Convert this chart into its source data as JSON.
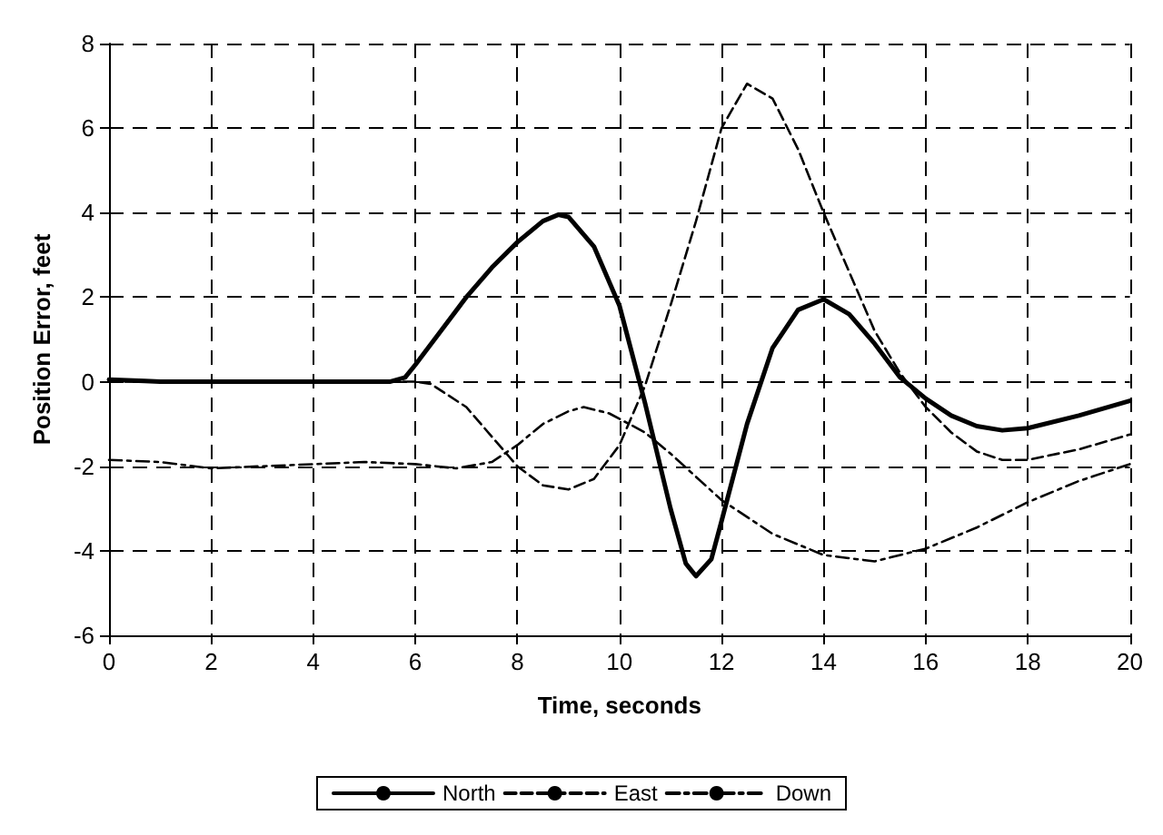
{
  "chart_data": {
    "type": "line",
    "xlabel": "Time, seconds",
    "ylabel": "Position Error, feet",
    "xlim": [
      0,
      20
    ],
    "xticks": [
      0,
      2,
      4,
      6,
      8,
      10,
      12,
      14,
      16,
      18,
      20
    ],
    "ylim": [
      -6,
      8
    ],
    "yticks": [
      -6,
      -4,
      -2,
      0,
      2,
      4,
      6,
      8
    ],
    "grid": true,
    "legend": "bottom",
    "marker": "none",
    "series": [
      {
        "name": "North",
        "color": "#000000",
        "line_style": "solid",
        "x": [
          0,
          0.7,
          1,
          5.5,
          5.8,
          6,
          6.5,
          7,
          7.5,
          8,
          8.5,
          8.8,
          9,
          9.5,
          10,
          10.5,
          11,
          11.3,
          11.5,
          11.8,
          12,
          12.5,
          13,
          13.5,
          14,
          14.5,
          15,
          15.5,
          16,
          16.5,
          17,
          17.5,
          18,
          19,
          20
        ],
        "values": [
          0.05,
          0.02,
          0,
          0,
          0.1,
          0.4,
          1.2,
          2,
          2.7,
          3.3,
          3.8,
          3.95,
          3.9,
          3.2,
          1.8,
          -0.5,
          -3,
          -4.3,
          -4.6,
          -4.2,
          -3.3,
          -1,
          0.8,
          1.7,
          1.95,
          1.6,
          0.9,
          0.1,
          -0.4,
          -0.8,
          -1.05,
          -1.15,
          -1.1,
          -0.8,
          -0.45
        ]
      },
      {
        "name": "East",
        "color": "#000000",
        "line_style": "dashed",
        "x": [
          0,
          6,
          6.3,
          7,
          7.5,
          8,
          8.5,
          9,
          9.5,
          10,
          10.5,
          11,
          11.5,
          12,
          12.5,
          13,
          13.5,
          14,
          14.5,
          15,
          15.5,
          16,
          16.5,
          17,
          17.5,
          18,
          19,
          20
        ],
        "values": [
          0,
          0,
          -0.05,
          -0.6,
          -1.3,
          -2,
          -2.45,
          -2.55,
          -2.3,
          -1.5,
          -0.1,
          1.8,
          3.8,
          6,
          7.05,
          6.7,
          5.5,
          4,
          2.6,
          1.2,
          0.2,
          -0.6,
          -1.2,
          -1.65,
          -1.85,
          -1.85,
          -1.6,
          -1.25
        ]
      },
      {
        "name": "Down",
        "color": "#000000",
        "line_style": "dashdot",
        "x": [
          0,
          1,
          2,
          3,
          4,
          5,
          6,
          6.8,
          7.5,
          8,
          8.5,
          9,
          9.3,
          9.8,
          10.5,
          11,
          12,
          13,
          14,
          15,
          16,
          17,
          18,
          19,
          20
        ],
        "values": [
          -1.85,
          -1.9,
          -2.05,
          -2,
          -1.95,
          -1.9,
          -1.95,
          -2.05,
          -1.9,
          -1.5,
          -1,
          -0.7,
          -0.6,
          -0.75,
          -1.2,
          -1.7,
          -2.8,
          -3.6,
          -4.1,
          -4.25,
          -3.95,
          -3.45,
          -2.85,
          -2.35,
          -1.95
        ]
      }
    ]
  }
}
